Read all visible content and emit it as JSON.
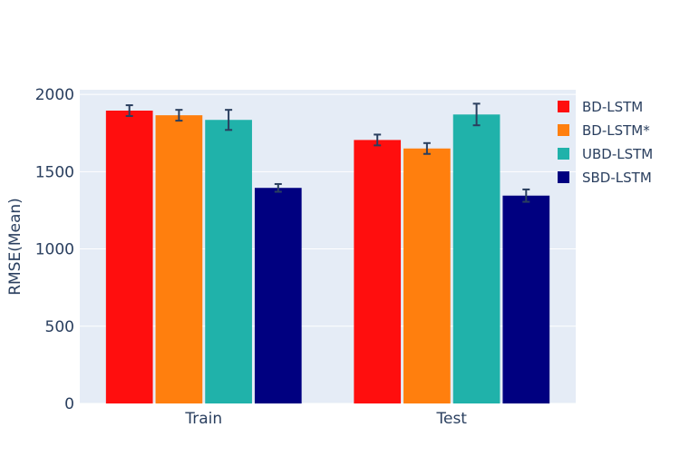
{
  "chart_data": {
    "type": "bar",
    "categories": [
      "Train",
      "Test"
    ],
    "ylabel": "RMSE(Mean)",
    "xlabel": "",
    "ylim": [
      0,
      2030
    ],
    "yticks": [
      0,
      500,
      1000,
      1500,
      2000
    ],
    "grid": true,
    "legend_position": "top-right",
    "series": [
      {
        "name": "BD-LSTM",
        "color": "#ff0e0e",
        "values": [
          1895,
          1705
        ],
        "errors": [
          35,
          35
        ]
      },
      {
        "name": "BD-LSTM*",
        "color": "#ff7f0e",
        "values": [
          1865,
          1650
        ],
        "errors": [
          35,
          35
        ]
      },
      {
        "name": "UBD-LSTM",
        "color": "#20b2aa",
        "values": [
          1835,
          1870
        ],
        "errors": [
          65,
          70
        ]
      },
      {
        "name": "SBD-LSTM",
        "color": "#000080",
        "values": [
          1395,
          1345
        ],
        "errors": [
          25,
          40
        ]
      }
    ]
  }
}
